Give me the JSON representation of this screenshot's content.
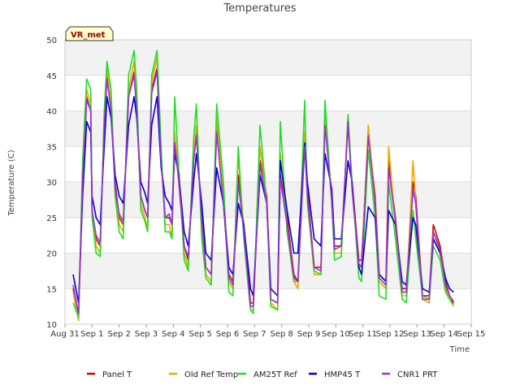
{
  "chart_data": {
    "type": "line",
    "title": "Temperatures",
    "xlabel": "Time",
    "ylabel": "Temperature (C)",
    "badge": "VR_met",
    "ylim": [
      10,
      50
    ],
    "yticks": [
      10,
      15,
      20,
      25,
      30,
      35,
      40,
      45,
      50
    ],
    "xlim": [
      0,
      15
    ],
    "xticks": [
      {
        "value": 0,
        "label": "Aug 31"
      },
      {
        "value": 1,
        "label": "Sep 1"
      },
      {
        "value": 2,
        "label": "Sep 2"
      },
      {
        "value": 3,
        "label": "Sep 3"
      },
      {
        "value": 4,
        "label": "Sep 4"
      },
      {
        "value": 5,
        "label": "Sep 5"
      },
      {
        "value": 6,
        "label": "Sep 6"
      },
      {
        "value": 7,
        "label": "Sep 7"
      },
      {
        "value": 8,
        "label": "Sep 8"
      },
      {
        "value": 9,
        "label": "Sep 9"
      },
      {
        "value": 10,
        "label": "Sep 10"
      },
      {
        "value": 11,
        "label": "Sep 11"
      },
      {
        "value": 12,
        "label": "Sep 12"
      },
      {
        "value": 13,
        "label": "Sep 13"
      },
      {
        "value": 14,
        "label": "Sep 14"
      },
      {
        "value": 15,
        "label": "Sep 15"
      }
    ],
    "x_unit": "days since Aug 31",
    "grid": true,
    "legend": "bottom",
    "series": [
      {
        "name": "Panel T",
        "color": "#cc0000",
        "x": [
          0.3,
          0.5,
          0.65,
          0.8,
          0.95,
          1.0,
          1.15,
          1.3,
          1.45,
          1.55,
          1.7,
          1.85,
          2.0,
          2.15,
          2.35,
          2.55,
          2.65,
          2.8,
          2.95,
          3.05,
          3.2,
          3.4,
          3.55,
          3.7,
          3.85,
          3.95,
          4.05,
          4.2,
          4.4,
          4.55,
          4.75,
          4.85,
          5.05,
          5.2,
          5.4,
          5.6,
          5.85,
          6.05,
          6.2,
          6.4,
          6.6,
          6.85,
          6.95,
          7.2,
          7.45,
          7.6,
          7.85,
          7.95,
          8.2,
          8.45,
          8.6,
          8.85,
          8.95,
          9.2,
          9.45,
          9.6,
          9.85,
          9.95,
          10.2,
          10.45,
          10.6,
          10.85,
          10.95,
          11.2,
          11.45,
          11.6,
          11.85,
          11.95,
          12.2,
          12.45,
          12.6,
          12.85,
          12.95,
          13.2,
          13.45,
          13.6,
          13.85,
          14.05,
          14.2,
          14.35
        ],
        "y": [
          15.0,
          11.0,
          30.0,
          42.0,
          40.0,
          26.0,
          22.0,
          21.0,
          38.0,
          45.0,
          40.0,
          30.0,
          25.0,
          24.0,
          42.0,
          45.5,
          40.0,
          28.0,
          26.0,
          25.0,
          43.0,
          46.0,
          33.0,
          25.0,
          25.0,
          24.0,
          36.0,
          30.0,
          21.0,
          19.0,
          33.0,
          37.0,
          25.0,
          18.0,
          17.0,
          38.0,
          27.0,
          17.0,
          16.0,
          31.0,
          24.0,
          13.0,
          13.0,
          33.0,
          28.0,
          13.5,
          13.0,
          31.0,
          25.0,
          17.0,
          16.0,
          36.0,
          29.0,
          18.0,
          18.0,
          39.0,
          28.0,
          21.0,
          21.0,
          38.0,
          30.0,
          19.0,
          19.0,
          37.0,
          28.0,
          17.0,
          16.0,
          33.0,
          25.0,
          15.0,
          15.0,
          30.0,
          28.0,
          14.0,
          14.0,
          24.0,
          21.0,
          16.0,
          14.0,
          13.0
        ]
      },
      {
        "name": "Old Ref Temp",
        "color": "#f0a500",
        "x": [
          0.3,
          0.5,
          0.65,
          0.8,
          0.95,
          1.0,
          1.15,
          1.3,
          1.45,
          1.55,
          1.7,
          1.85,
          2.0,
          2.15,
          2.35,
          2.55,
          2.65,
          2.8,
          2.95,
          3.05,
          3.2,
          3.4,
          3.55,
          3.7,
          3.85,
          3.95,
          4.05,
          4.2,
          4.4,
          4.55,
          4.75,
          4.85,
          5.05,
          5.2,
          5.4,
          5.6,
          5.85,
          6.05,
          6.2,
          6.4,
          6.6,
          6.85,
          6.95,
          7.2,
          7.45,
          7.6,
          7.85,
          7.95,
          8.2,
          8.45,
          8.6,
          8.85,
          8.95,
          9.2,
          9.45,
          9.6,
          9.85,
          9.95,
          10.2,
          10.45,
          10.6,
          10.85,
          10.95,
          11.2,
          11.45,
          11.6,
          11.85,
          11.95,
          12.2,
          12.45,
          12.6,
          12.85,
          12.95,
          13.2,
          13.45,
          13.6,
          13.85,
          14.05,
          14.2,
          14.35
        ],
        "y": [
          14.5,
          10.5,
          31.0,
          43.0,
          41.0,
          25.5,
          21.0,
          20.0,
          39.0,
          46.0,
          41.0,
          29.0,
          24.0,
          23.0,
          43.0,
          47.0,
          41.0,
          27.0,
          25.0,
          23.5,
          44.0,
          47.5,
          34.0,
          24.0,
          24.0,
          22.0,
          37.0,
          31.0,
          20.0,
          18.0,
          34.0,
          38.0,
          24.0,
          17.0,
          16.0,
          39.0,
          28.0,
          16.0,
          15.0,
          34.0,
          23.0,
          12.0,
          12.0,
          35.0,
          27.0,
          13.0,
          12.0,
          34.0,
          24.0,
          16.0,
          15.0,
          37.0,
          28.0,
          17.0,
          17.0,
          40.0,
          27.0,
          20.0,
          20.0,
          39.0,
          29.0,
          18.0,
          18.0,
          38.0,
          27.0,
          16.0,
          15.0,
          35.0,
          24.0,
          14.0,
          14.0,
          33.0,
          27.0,
          13.5,
          13.0,
          23.0,
          20.0,
          15.0,
          13.5,
          12.5
        ]
      },
      {
        "name": "AM25T Ref",
        "color": "#22dd22",
        "x": [
          0.3,
          0.5,
          0.65,
          0.8,
          0.95,
          1.0,
          1.15,
          1.3,
          1.45,
          1.55,
          1.7,
          1.85,
          2.0,
          2.15,
          2.35,
          2.55,
          2.65,
          2.8,
          2.95,
          3.05,
          3.2,
          3.4,
          3.55,
          3.7,
          3.85,
          3.95,
          4.05,
          4.2,
          4.4,
          4.55,
          4.75,
          4.85,
          5.05,
          5.2,
          5.4,
          5.6,
          5.85,
          6.05,
          6.2,
          6.4,
          6.6,
          6.85,
          6.95,
          7.2,
          7.45,
          7.6,
          7.85,
          7.95,
          8.2,
          8.45,
          8.6,
          8.85,
          8.95,
          9.2,
          9.45,
          9.6,
          9.85,
          9.95,
          10.2,
          10.45,
          10.6,
          10.85,
          10.95,
          11.2,
          11.45,
          11.6,
          11.85,
          11.95,
          12.2,
          12.45,
          12.6,
          12.85,
          12.95,
          13.2,
          13.45,
          13.6,
          13.85,
          14.05,
          14.2,
          14.35
        ],
        "y": [
          13.0,
          11.0,
          33.0,
          44.5,
          43.0,
          25.0,
          20.0,
          19.5,
          40.0,
          47.0,
          43.0,
          28.0,
          23.0,
          22.0,
          45.0,
          48.5,
          43.0,
          26.0,
          24.5,
          23.0,
          45.0,
          48.5,
          35.0,
          23.0,
          23.0,
          22.0,
          42.0,
          32.0,
          19.0,
          17.5,
          36.0,
          41.0,
          22.0,
          16.5,
          15.5,
          41.0,
          30.0,
          14.5,
          14.0,
          35.0,
          22.0,
          12.0,
          11.5,
          38.0,
          27.0,
          12.5,
          12.0,
          38.5,
          23.0,
          16.0,
          16.0,
          41.5,
          27.0,
          17.5,
          17.0,
          41.5,
          27.0,
          19.0,
          19.5,
          39.5,
          30.0,
          16.5,
          16.0,
          34.5,
          25.0,
          14.0,
          13.5,
          30.0,
          22.0,
          13.5,
          13.0,
          26.0,
          22.0,
          14.0,
          13.5,
          21.0,
          19.0,
          14.5,
          13.5,
          12.8
        ]
      },
      {
        "name": "HMP45 T",
        "color": "#0000cc",
        "x": [
          0.3,
          0.5,
          0.65,
          0.8,
          0.95,
          1.0,
          1.15,
          1.3,
          1.45,
          1.55,
          1.7,
          1.85,
          2.0,
          2.15,
          2.35,
          2.55,
          2.65,
          2.8,
          2.95,
          3.05,
          3.2,
          3.4,
          3.55,
          3.7,
          3.85,
          3.95,
          4.05,
          4.2,
          4.4,
          4.55,
          4.75,
          4.85,
          5.05,
          5.2,
          5.4,
          5.6,
          5.85,
          6.05,
          6.2,
          6.4,
          6.6,
          6.85,
          6.95,
          7.2,
          7.45,
          7.6,
          7.85,
          7.95,
          8.2,
          8.45,
          8.6,
          8.85,
          8.95,
          9.2,
          9.45,
          9.6,
          9.85,
          9.95,
          10.2,
          10.45,
          10.6,
          10.85,
          10.95,
          11.2,
          11.45,
          11.6,
          11.85,
          11.95,
          12.2,
          12.45,
          12.6,
          12.85,
          12.95,
          13.2,
          13.45,
          13.6,
          13.85,
          14.05,
          14.2,
          14.35
        ],
        "y": [
          17.0,
          13.0,
          28.0,
          38.5,
          37.0,
          28.0,
          25.0,
          24.0,
          35.0,
          42.0,
          39.0,
          31.0,
          28.0,
          27.0,
          38.0,
          42.0,
          39.0,
          30.0,
          28.5,
          27.0,
          38.0,
          42.0,
          32.0,
          28.0,
          27.0,
          26.0,
          34.0,
          31.0,
          23.0,
          21.0,
          30.0,
          34.0,
          27.0,
          20.0,
          19.0,
          32.0,
          27.0,
          18.0,
          17.0,
          27.0,
          24.0,
          15.0,
          14.0,
          31.0,
          27.0,
          15.0,
          14.0,
          33.0,
          26.0,
          20.0,
          20.0,
          35.5,
          30.0,
          22.0,
          21.0,
          34.0,
          29.0,
          22.0,
          22.0,
          33.0,
          30.0,
          18.0,
          17.0,
          26.5,
          25.0,
          17.0,
          16.0,
          26.0,
          24.0,
          16.0,
          15.5,
          25.0,
          24.0,
          15.0,
          14.5,
          22.0,
          20.0,
          16.5,
          15.0,
          14.5
        ]
      },
      {
        "name": "CNR1 PRT",
        "color": "#9933cc",
        "x": [
          0.3,
          0.5,
          0.65,
          0.8,
          0.95,
          1.0,
          1.15,
          1.3,
          1.45,
          1.55,
          1.7,
          1.85,
          2.0,
          2.15,
          2.35,
          2.55,
          2.65,
          2.8,
          2.95,
          3.05,
          3.2,
          3.4,
          3.55,
          3.7,
          3.85,
          3.95,
          4.05,
          4.2,
          4.4,
          4.55,
          4.75,
          4.85,
          5.05,
          5.2,
          5.4,
          5.6,
          5.85,
          6.05,
          6.2,
          6.4,
          6.6,
          6.85,
          6.95,
          7.2,
          7.45,
          7.6,
          7.85,
          7.95,
          8.2,
          8.45,
          8.6,
          8.85,
          8.95,
          9.2,
          9.45,
          9.6,
          9.85,
          9.95,
          10.2,
          10.45,
          10.6,
          10.85,
          10.95,
          11.2,
          11.45,
          11.6,
          11.85,
          11.95,
          12.2,
          12.45,
          12.6,
          12.85,
          12.95,
          13.2,
          13.45,
          13.6,
          13.85,
          14.05,
          14.2,
          14.35
        ],
        "y": [
          15.5,
          11.5,
          30.5,
          41.5,
          40.0,
          26.0,
          22.5,
          21.5,
          38.0,
          44.5,
          40.0,
          29.0,
          25.5,
          24.5,
          42.0,
          45.0,
          40.0,
          28.0,
          26.0,
          25.0,
          42.5,
          45.5,
          33.0,
          25.0,
          25.5,
          24.0,
          35.5,
          30.5,
          21.0,
          19.5,
          33.0,
          36.5,
          24.5,
          18.0,
          17.0,
          37.0,
          27.0,
          16.5,
          15.5,
          30.0,
          23.0,
          12.5,
          12.5,
          32.5,
          27.0,
          13.5,
          13.0,
          30.5,
          24.0,
          16.5,
          16.0,
          35.0,
          28.0,
          18.0,
          17.5,
          38.0,
          27.5,
          20.5,
          21.0,
          38.5,
          29.0,
          18.5,
          18.0,
          36.5,
          27.0,
          16.5,
          15.5,
          32.0,
          24.5,
          14.5,
          14.5,
          29.0,
          27.0,
          13.5,
          13.5,
          23.0,
          20.5,
          15.5,
          14.0,
          13.2
        ]
      }
    ]
  }
}
